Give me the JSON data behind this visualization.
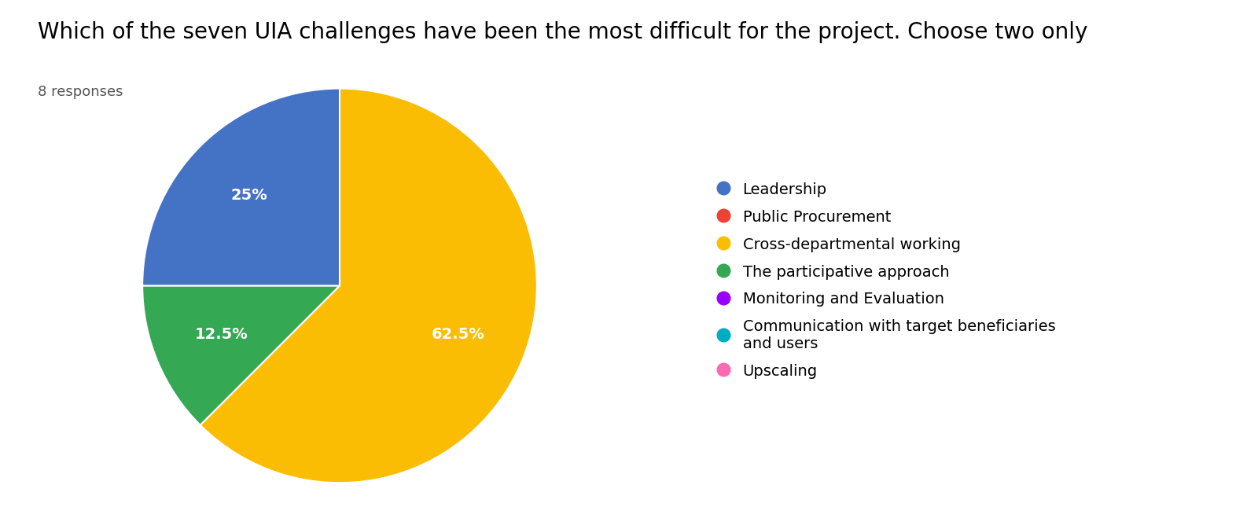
{
  "title": "Which of the seven UIA challenges have been the most difficult for the project. Choose two only",
  "subtitle": "8 responses",
  "slices": [
    {
      "label": "Cross-departmental working",
      "value": 62.5,
      "color": "#FBBC04"
    },
    {
      "label": "The participative approach",
      "value": 12.5,
      "color": "#34A853"
    },
    {
      "label": "Leadership",
      "value": 25.0,
      "color": "#4472C4"
    }
  ],
  "legend_labels": [
    "Leadership",
    "Public Procurement",
    "Cross-departmental working",
    "The participative approach",
    "Monitoring and Evaluation",
    "Communication with target beneficiaries\nand users",
    "Upscaling"
  ],
  "legend_colors": [
    "#4472C4",
    "#EA4335",
    "#FBBC04",
    "#34A853",
    "#9900FF",
    "#00ACC1",
    "#FF69B4"
  ],
  "title_fontsize": 20,
  "subtitle_fontsize": 13,
  "label_fontsize": 14,
  "legend_fontsize": 14,
  "background_color": "#FFFFFF",
  "text_color": "#000000",
  "startangle": 90,
  "pct_distance": 0.65
}
